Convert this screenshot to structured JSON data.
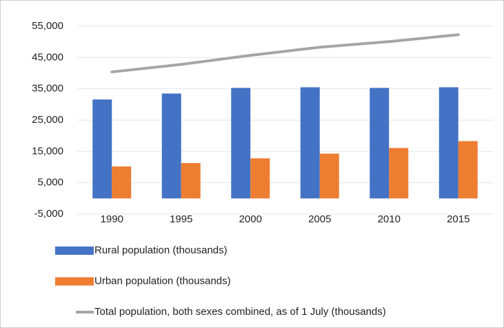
{
  "chart_data": {
    "type": "bar_line",
    "categories": [
      "1990",
      "1995",
      "2000",
      "2005",
      "2010",
      "2015"
    ],
    "series": [
      {
        "name": "Rural population (thousands)",
        "color": "#4472c4",
        "type": "bar",
        "values": [
          31600,
          33500,
          35300,
          35500,
          35300,
          35500
        ]
      },
      {
        "name": "Urban population (thousands)",
        "color": "#ed7d31",
        "type": "bar",
        "values": [
          10200,
          11300,
          12800,
          14300,
          16100,
          18300
        ]
      },
      {
        "name": "Total population, both sexes combined, as of 1 July (thousands)",
        "color": "#a5a5a5",
        "type": "line",
        "values": [
          40400,
          42800,
          45700,
          48300,
          50100,
          52300
        ]
      }
    ],
    "ylim": [
      -5000,
      55000
    ],
    "yticks": [
      {
        "value": -5000,
        "label": "-5,000"
      },
      {
        "value": 5000,
        "label": "5,000"
      },
      {
        "value": 15000,
        "label": "15,000"
      },
      {
        "value": 25000,
        "label": "25,000"
      },
      {
        "value": 35000,
        "label": "35,000"
      },
      {
        "value": 45000,
        "label": "45,000"
      },
      {
        "value": 55000,
        "label": "55,000"
      }
    ],
    "grid": true,
    "legend": "bottom"
  }
}
